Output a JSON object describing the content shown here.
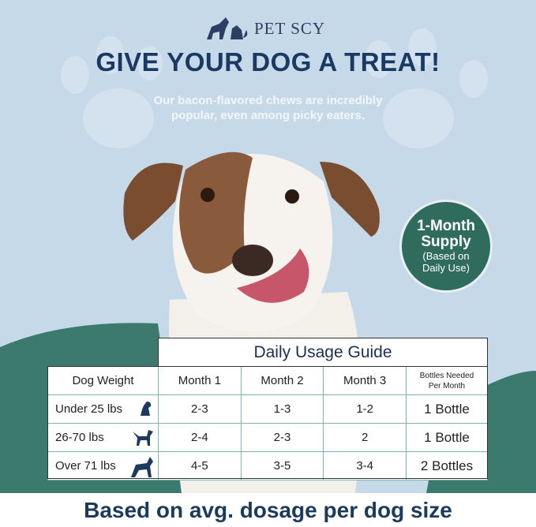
{
  "brand": "PET SCY",
  "headline": "GIVE YOUR DOG A TREAT!",
  "subtitle_line1": "Our bacon-flavored chews are incredibly",
  "subtitle_line2": "popular, even among picky eaters.",
  "badge": {
    "line1": "1-Month",
    "line2": "Supply",
    "line3": "(Based on",
    "line4": "Daily Use)"
  },
  "colors": {
    "background": "#c6d9e8",
    "navy": "#1b3a63",
    "teal": "#2f6c5e"
  },
  "table": {
    "title": "Daily Usage Guide",
    "headers": [
      "Dog Weight",
      "Month 1",
      "Month 2",
      "Month 3",
      "Bottles Needed",
      "Per Month"
    ],
    "rows": [
      {
        "weight": "Under 25 lbs",
        "icon": "small-dog-icon",
        "m1": "2-3",
        "m2": "1-3",
        "m3": "1-2",
        "bottles": "1 Bottle"
      },
      {
        "weight": "26-70 lbs",
        "icon": "medium-dog-icon",
        "m1": "2-4",
        "m2": "2-3",
        "m3": "2",
        "bottles": "1 Bottle"
      },
      {
        "weight": "Over 71 lbs",
        "icon": "large-dog-icon",
        "m1": "4-5",
        "m2": "3-5",
        "m3": "3-4",
        "bottles": "2 Bottles"
      }
    ]
  },
  "footer": "Based on avg. dosage per dog size"
}
